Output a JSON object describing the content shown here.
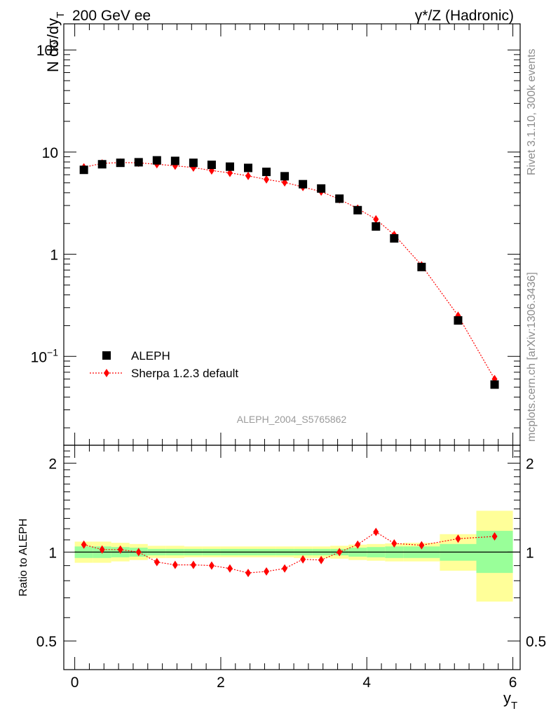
{
  "header": {
    "left": "200 GeV ee",
    "right": "γ*/Z (Hadronic)"
  },
  "side_labels": {
    "rivet": "Rivet 3.1.10,  300k events",
    "mcplots": "mcplots.cern.ch [arXiv:1306.3436]"
  },
  "analysis_id": "ALEPH_2004_S5765862",
  "colors": {
    "data": "#000000",
    "mc": "#ff0000",
    "band_inner": "#99ff99",
    "band_outer": "#ffff99"
  },
  "chart_data": [
    {
      "type": "scatter",
      "panel": "main",
      "ylabel": "N dσ/dy",
      "ylabel_sub": "T",
      "yscale": "log",
      "xlim": [
        -0.15,
        6.1
      ],
      "ylim": [
        0.0135,
        180
      ],
      "yticks": [
        0.1,
        1,
        10,
        100
      ],
      "ytick_labels": [
        {
          "base": "10",
          "exp": "−1"
        },
        {
          "base": "1",
          "exp": ""
        },
        {
          "base": "10",
          "exp": ""
        },
        {
          "base": "10",
          "exp": "2"
        }
      ],
      "legend": {
        "position": "middle-left",
        "entries": [
          {
            "label": "ALEPH",
            "marker": "square",
            "series": 0
          },
          {
            "label": "Sherpa 1.2.3 default",
            "marker": "diamond",
            "series": 1
          }
        ]
      },
      "x": [
        0.125,
        0.375,
        0.625,
        0.875,
        1.125,
        1.375,
        1.625,
        1.875,
        2.125,
        2.375,
        2.625,
        2.875,
        3.125,
        3.375,
        3.625,
        3.875,
        4.125,
        4.375,
        4.75,
        5.25,
        5.75
      ],
      "series": [
        {
          "name": "ALEPH",
          "values": [
            6.7,
            7.6,
            7.85,
            7.95,
            8.3,
            8.2,
            7.85,
            7.5,
            7.2,
            7.0,
            6.4,
            5.8,
            4.85,
            4.4,
            3.5,
            2.7,
            1.87,
            1.43,
            0.75,
            0.225,
            0.053
          ]
        },
        {
          "name": "Sherpa 1.2.3 default",
          "values": [
            7.1,
            7.75,
            7.9,
            7.85,
            7.6,
            7.35,
            7.05,
            6.6,
            6.25,
            5.85,
            5.4,
            5.05,
            4.55,
            4.1,
            3.45,
            2.8,
            2.2,
            1.55,
            0.78,
            0.25,
            0.06
          ]
        }
      ]
    },
    {
      "type": "line",
      "panel": "ratio",
      "ylabel": "Ratio to ALEPH",
      "xlabel": "y",
      "xlabel_sub": "T",
      "xlim": [
        -0.15,
        6.1
      ],
      "ylim": [
        0.4,
        2.3
      ],
      "ylim_note_scale": "log",
      "yticks": [
        0.5,
        1,
        2
      ],
      "ytick_labels": [
        "0.5",
        "1",
        "2"
      ],
      "xticks": [
        0,
        2,
        4,
        6
      ],
      "xtick_labels": [
        "0",
        "2",
        "4",
        "6"
      ],
      "reference": 1,
      "bands": {
        "bin_edges": [
          0,
          0.25,
          0.5,
          0.75,
          1.0,
          1.25,
          1.5,
          1.75,
          2.0,
          2.25,
          2.5,
          2.75,
          3.0,
          3.25,
          3.5,
          3.75,
          4.0,
          4.25,
          4.5,
          5.0,
          5.5,
          6.0
        ],
        "inner": [
          [
            0.955,
            1.045
          ],
          [
            0.955,
            1.045
          ],
          [
            0.96,
            1.04
          ],
          [
            0.965,
            1.035
          ],
          [
            0.975,
            1.025
          ],
          [
            0.975,
            1.025
          ],
          [
            0.975,
            1.025
          ],
          [
            0.975,
            1.025
          ],
          [
            0.975,
            1.025
          ],
          [
            0.975,
            1.025
          ],
          [
            0.975,
            1.025
          ],
          [
            0.975,
            1.025
          ],
          [
            0.975,
            1.025
          ],
          [
            0.975,
            1.025
          ],
          [
            0.975,
            1.025
          ],
          [
            0.965,
            1.035
          ],
          [
            0.96,
            1.04
          ],
          [
            0.955,
            1.045
          ],
          [
            0.955,
            1.045
          ],
          [
            0.935,
            1.065
          ],
          [
            0.85,
            1.18
          ]
        ],
        "outer": [
          [
            0.92,
            1.085
          ],
          [
            0.92,
            1.085
          ],
          [
            0.93,
            1.075
          ],
          [
            0.94,
            1.065
          ],
          [
            0.955,
            1.05
          ],
          [
            0.955,
            1.05
          ],
          [
            0.96,
            1.045
          ],
          [
            0.96,
            1.045
          ],
          [
            0.96,
            1.045
          ],
          [
            0.96,
            1.045
          ],
          [
            0.96,
            1.045
          ],
          [
            0.96,
            1.045
          ],
          [
            0.955,
            1.045
          ],
          [
            0.955,
            1.045
          ],
          [
            0.95,
            1.05
          ],
          [
            0.94,
            1.06
          ],
          [
            0.935,
            1.065
          ],
          [
            0.93,
            1.07
          ],
          [
            0.93,
            1.075
          ],
          [
            0.865,
            1.15
          ],
          [
            0.68,
            1.38
          ]
        ]
      },
      "x": [
        0.125,
        0.375,
        0.625,
        0.875,
        1.125,
        1.375,
        1.625,
        1.875,
        2.125,
        2.375,
        2.625,
        2.875,
        3.125,
        3.375,
        3.625,
        3.875,
        4.125,
        4.375,
        4.75,
        5.25,
        5.75
      ],
      "series": [
        {
          "name": "Sherpa 1.2.3 default",
          "values": [
            1.06,
            1.02,
            1.02,
            1.0,
            0.925,
            0.905,
            0.905,
            0.9,
            0.88,
            0.85,
            0.86,
            0.88,
            0.945,
            0.94,
            1.0,
            1.06,
            1.17,
            1.07,
            1.055,
            1.11,
            1.13
          ]
        }
      ]
    }
  ]
}
